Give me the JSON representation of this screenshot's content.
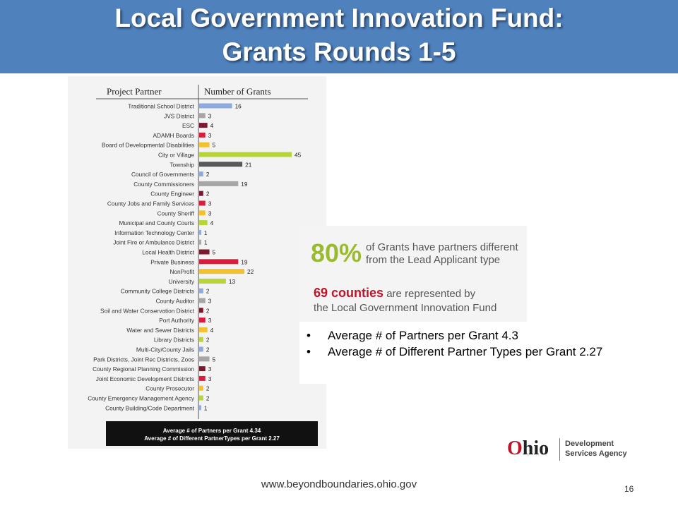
{
  "header": {
    "title_line1": "Local Government Innovation Fund:",
    "title_line2": "Grants Rounds 1-5"
  },
  "chart_data": {
    "type": "bar",
    "orientation": "horizontal",
    "column_headers": [
      "Project Partner",
      "Number of Grants"
    ],
    "categories": [
      "Traditional School District",
      "JVS District",
      "ESC",
      "ADAMH Boards",
      "Board of Developmental Disabilities",
      "City or Village",
      "Township",
      "Council of Governments",
      "County Commissioners",
      "County Engineer",
      "County Jobs and Family Services",
      "County Sheriff",
      "Municipal and County Courts",
      "Information Technology Center",
      "Joint Fire or Ambulance District",
      "Local Health District",
      "Private Business",
      "NonProfit",
      "University",
      "Community College Districts",
      "County Auditor",
      "Soil and Water Conservation District",
      "Port Authority",
      "Water and Sewer Districts",
      "Library Districts",
      "Multi-City/County Jails",
      "Park Districts, Joint Rec Districts, Zoos",
      "County Regional Planning Commission",
      "Joint Economic Development Districts",
      "County Prosecutor",
      "County Emergency Management Agency",
      "County Building/Code Department"
    ],
    "values": [
      16,
      3,
      4,
      3,
      5,
      45,
      21,
      2,
      19,
      2,
      3,
      3,
      4,
      1,
      1,
      5,
      19,
      22,
      13,
      2,
      3,
      2,
      3,
      4,
      2,
      2,
      5,
      3,
      3,
      2,
      2,
      1
    ],
    "colors": [
      "#8eaadb",
      "#a6a6a6",
      "#7b1a2e",
      "#d91e3c",
      "#f2c12e",
      "#b7d43a",
      "#595959",
      "#8eaadb",
      "#a6a6a6",
      "#7b1a2e",
      "#d91e3c",
      "#f2c12e",
      "#b7d43a",
      "#8eaadb",
      "#a6a6a6",
      "#7b1a2e",
      "#d91e3c",
      "#f2c12e",
      "#b7d43a",
      "#8eaadb",
      "#a6a6a6",
      "#7b1a2e",
      "#d91e3c",
      "#f2c12e",
      "#b7d43a",
      "#8eaadb",
      "#a6a6a6",
      "#7b1a2e",
      "#d91e3c",
      "#f2c12e",
      "#b7d43a",
      "#8eaadb"
    ],
    "xlim": [
      0,
      45
    ],
    "footer_line1": "Average # of Partners per Grant 4.34",
    "footer_line2": "Average # of Different PartnerTypes per Grant 2.27"
  },
  "stats": {
    "pct_value": "80%",
    "pct_text_line1": "of Grants have partners different",
    "pct_text_line2": "from the Lead Applicant type",
    "counties_value": "69 counties",
    "counties_text": "are represented by",
    "counties_text_line2": "the Local Government Innovation Fund",
    "pct_color": "#9bbb2e",
    "counties_color": "#c0142a"
  },
  "bullets": [
    "Average #  of Partners per Grant 4.3",
    "Average # of Different Partner Types per Grant 2.27"
  ],
  "logo": {
    "ohio_o": "O",
    "ohio_rest": "hio",
    "agency_line1": "Development",
    "agency_line2": "Services Agency"
  },
  "footer": {
    "url": "www.beyondboundaries.ohio.gov",
    "page_number": "16"
  },
  "theme": {
    "title_bar_color": "#4f81bd"
  }
}
